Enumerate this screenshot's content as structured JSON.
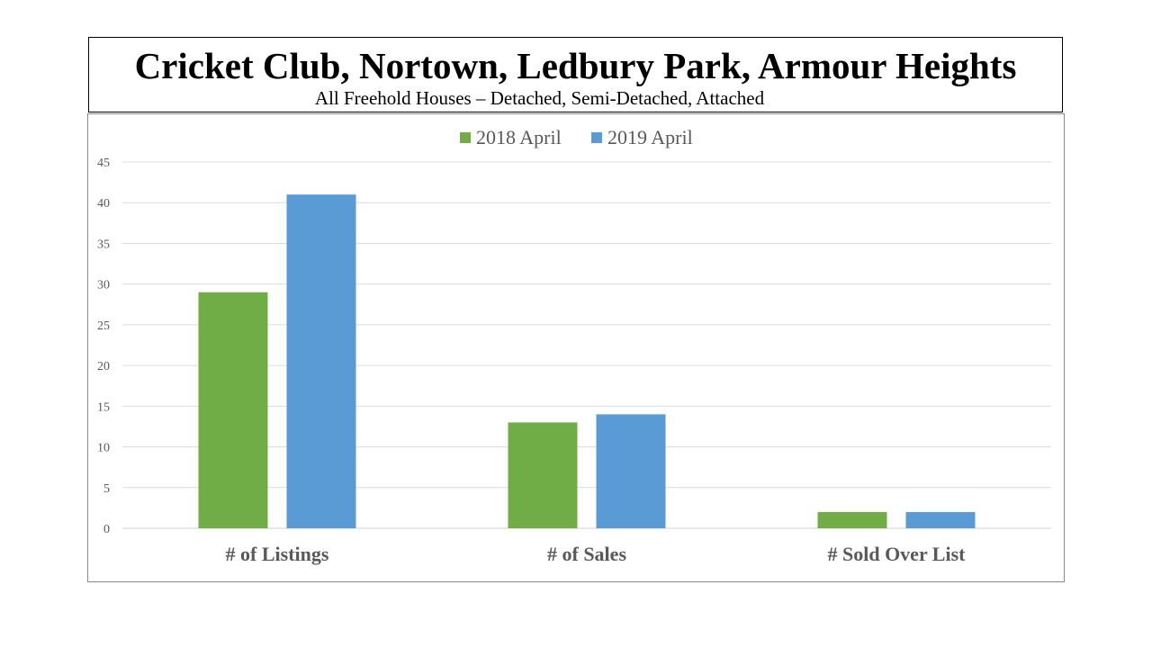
{
  "header": {
    "title": "Cricket Club, Nortown, Ledbury Park, Armour Heights",
    "subtitle": "All Freehold Houses – Detached, Semi-Detached, Attached"
  },
  "chart_data": {
    "type": "bar",
    "categories": [
      "# of Listings",
      "# of Sales",
      "# Sold Over List"
    ],
    "series": [
      {
        "name": "2018 April",
        "values": [
          29,
          13,
          2
        ],
        "color": "#70AD47"
      },
      {
        "name": "2019 April",
        "values": [
          41,
          14,
          2
        ],
        "color": "#5B9BD5"
      }
    ],
    "ylim": [
      0,
      45
    ],
    "yticks": [
      0,
      5,
      10,
      15,
      20,
      25,
      30,
      35,
      40,
      45
    ],
    "grid": true,
    "legend": "top-center"
  }
}
